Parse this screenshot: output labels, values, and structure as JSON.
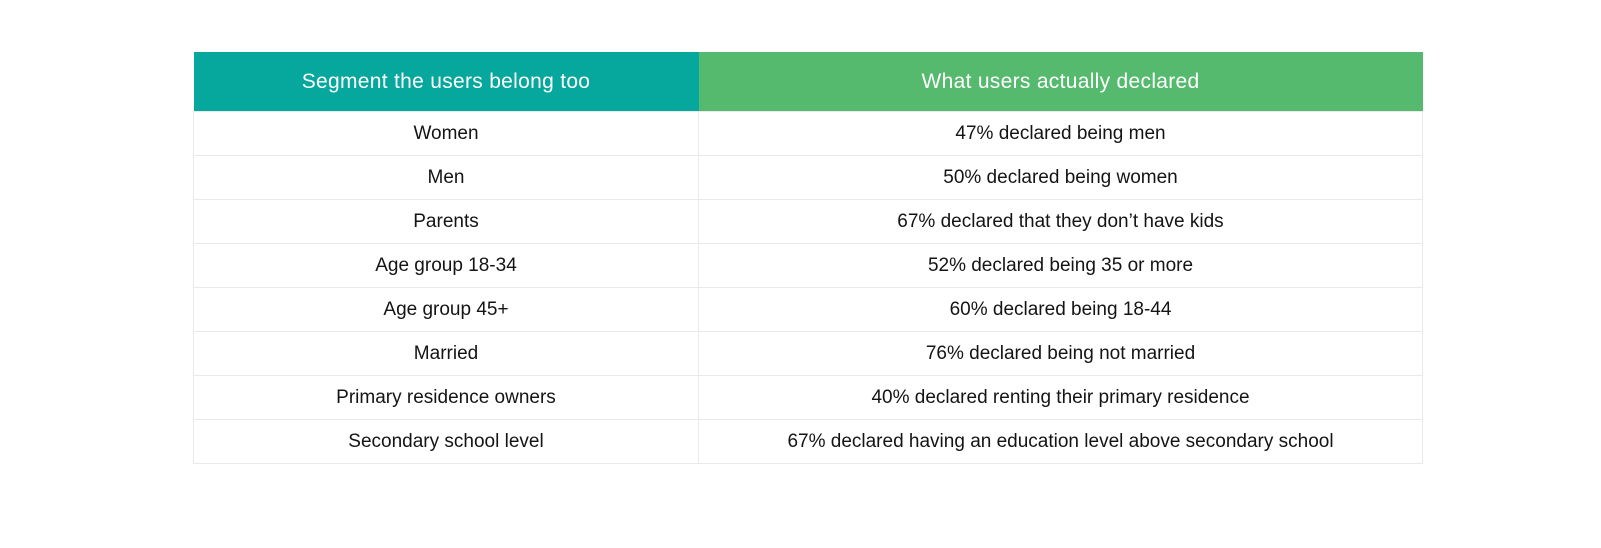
{
  "table": {
    "headers": [
      {
        "label": "Segment the users belong too"
      },
      {
        "label": "What users actually declared"
      }
    ],
    "rows": [
      {
        "segment": "Women",
        "declared": "47% declared being men"
      },
      {
        "segment": "Men",
        "declared": "50% declared being women"
      },
      {
        "segment": "Parents",
        "declared": "67% declared that they don’t have kids"
      },
      {
        "segment": "Age group 18-34",
        "declared": "52% declared being 35 or more"
      },
      {
        "segment": "Age group 45+",
        "declared": "60% declared being 18-44"
      },
      {
        "segment": "Married",
        "declared": "76% declared being not married"
      },
      {
        "segment": "Primary residence owners",
        "declared": "40% declared renting their primary residence"
      },
      {
        "segment": "Secondary school level",
        "declared": "67% declared having an education level above secondary school"
      }
    ]
  },
  "colors": {
    "header_segment_bg": "#06A79D",
    "header_declared_bg": "#55BA6D",
    "header_text": "#FFFFFF",
    "body_text": "#141414",
    "row_border": "#E9E9E9",
    "page_bg": "#FFFFFF"
  },
  "chart_data": {
    "type": "table",
    "columns": [
      "Segment the users belong too",
      "What users actually declared"
    ],
    "rows": [
      [
        "Women",
        "47% declared being men"
      ],
      [
        "Men",
        "50% declared being women"
      ],
      [
        "Parents",
        "67% declared that they don’t have kids"
      ],
      [
        "Age group 18-34",
        "52% declared being 35 or more"
      ],
      [
        "Age group 45+",
        "60% declared being 18-44"
      ],
      [
        "Married",
        "76% declared being not married"
      ],
      [
        "Primary residence owners",
        "40% declared renting their primary residence"
      ],
      [
        "Secondary school level",
        "67% declared having an education level above secondary school"
      ]
    ],
    "declared_percentages": [
      47,
      50,
      67,
      52,
      60,
      76,
      40,
      67
    ],
    "title": "",
    "legend_position": "none",
    "grid": false
  }
}
